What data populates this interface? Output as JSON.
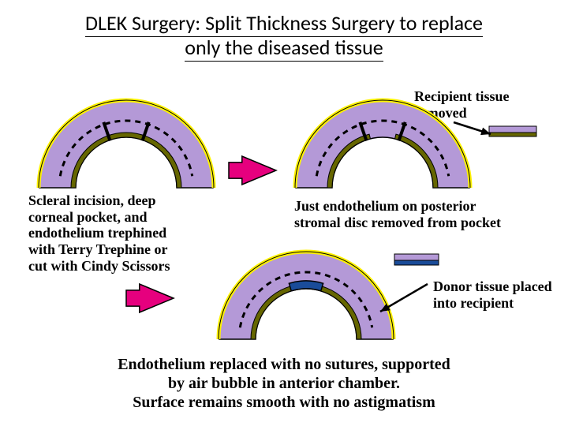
{
  "title_line1": "DLEK Surgery: Split Thickness Surgery to replace",
  "title_line2": "only the diseased tissue",
  "labels": {
    "recipient_removed": "Recipient tissue\nremoved",
    "scleral": "Scleral incision, deep\ncorneal pocket, and\nendothelium trephined\nwith Terry Trephine or\ncut with Cindy Scissors",
    "just_endo": "Just endothelium on posterior\nstromal disc removed from pocket",
    "donor": "Donor tissue placed\ninto recipient"
  },
  "caption_line1": "Endothelium replaced with no sutures, supported",
  "caption_line2": "by air bubble in anterior chamber.",
  "caption_line3": "Surface remains smooth with no astigmatism",
  "colors": {
    "stroma": "#b499d7",
    "epithelium_stroke": "#fff200",
    "endothelium": "#666600",
    "trephine_fill": "#000000",
    "arrow_pink": "#e6007e",
    "arrow_black": "#000000",
    "donor_fill": "#1a4c99"
  },
  "geometry": {
    "cornea_outer_r": 110,
    "cornea_inner_r": 64,
    "dash": "7,6",
    "trephine_gap_half_deg": 14,
    "tick_spread_deg": 38
  }
}
